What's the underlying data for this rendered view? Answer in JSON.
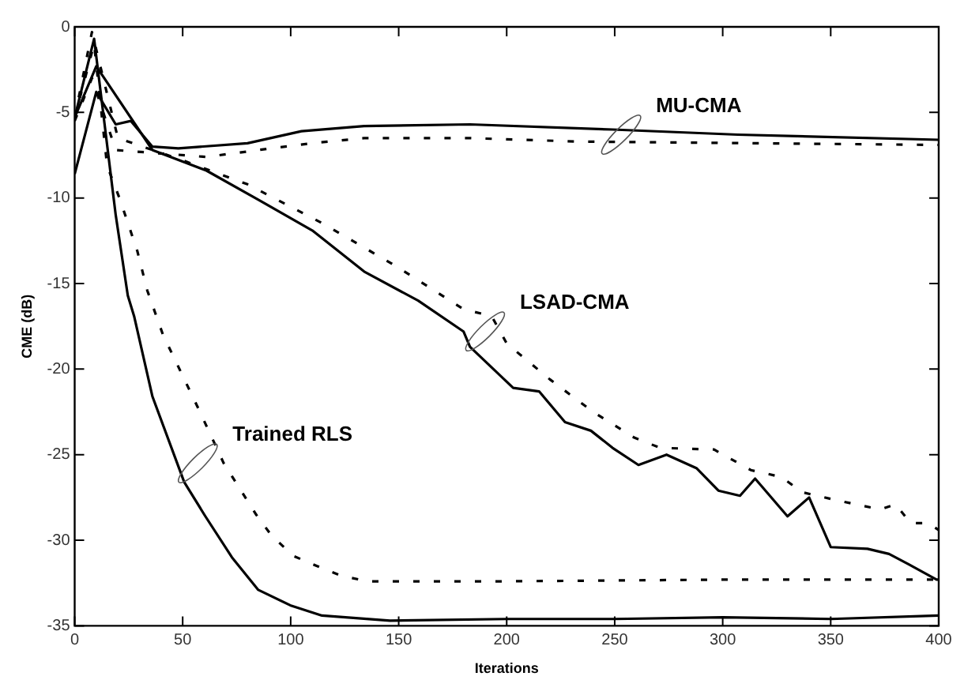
{
  "chart_data": {
    "type": "line",
    "xlabel": "Iterations",
    "ylabel": "CME (dB)",
    "xlim": [
      0,
      400
    ],
    "ylim": [
      -35,
      0
    ],
    "xticks": [
      0,
      50,
      100,
      150,
      200,
      250,
      300,
      350,
      400
    ],
    "yticks": [
      -35,
      -30,
      -25,
      -20,
      -15,
      -10,
      -5,
      0
    ],
    "grid": false,
    "legend": false,
    "marker": "none",
    "series": [
      {
        "color": "#000000",
        "line_style": "solid",
        "x": [
          0,
          10,
          19,
          26,
          36,
          48,
          80,
          105,
          134,
          183,
          249,
          307,
          400
        ],
        "values": [
          -8.6,
          -3.8,
          -5.7,
          -5.5,
          -7.0,
          -7.1,
          -6.8,
          -6.1,
          -5.8,
          -5.7,
          -6.0,
          -6.3,
          -6.6
        ]
      },
      {
        "color": "#000000",
        "line_style": "dashed",
        "x": [
          0,
          8,
          19,
          61,
          85,
          110,
          134,
          183,
          232,
          400
        ],
        "values": [
          -5.5,
          -3.0,
          -7.2,
          -7.6,
          -7.2,
          -6.8,
          -6.5,
          -6.5,
          -6.7,
          -6.9
        ]
      },
      {
        "color": "#000000",
        "line_style": "solid",
        "x": [
          0,
          10,
          36,
          61,
          85,
          110,
          134,
          159,
          180,
          183,
          203,
          215,
          227,
          239,
          249,
          261,
          274,
          288,
          298,
          308,
          315,
          330,
          340,
          350,
          367,
          377,
          386,
          399,
          400
        ],
        "values": [
          -5.3,
          -2.3,
          -7.2,
          -8.4,
          -10.1,
          -11.9,
          -14.3,
          -16.0,
          -17.8,
          -18.7,
          -21.1,
          -21.3,
          -23.1,
          -23.6,
          -24.6,
          -25.6,
          -25.0,
          -25.8,
          -27.1,
          -27.4,
          -26.4,
          -28.6,
          -27.5,
          -30.4,
          -30.5,
          -30.8,
          -31.4,
          -32.3,
          -32.3
        ]
      },
      {
        "color": "#000000",
        "line_style": "dashed",
        "x": [
          0,
          8,
          20,
          50,
          80,
          115,
          149,
          180,
          193,
          200,
          220,
          240,
          259,
          271,
          296,
          313,
          327,
          337,
          354,
          373,
          380,
          387,
          395,
          400
        ],
        "values": [
          -5.3,
          -0.3,
          -6.5,
          -7.8,
          -9.2,
          -11.5,
          -14.0,
          -16.5,
          -16.9,
          -18.5,
          -20.6,
          -22.5,
          -24.0,
          -24.6,
          -24.7,
          -25.9,
          -26.3,
          -27.2,
          -27.7,
          -28.2,
          -27.9,
          -29.0,
          -29.0,
          -29.4
        ]
      },
      {
        "color": "#000000",
        "line_style": "solid",
        "x": [
          0,
          9,
          19,
          24.6,
          27.5,
          36,
          50.7,
          60.5,
          72.8,
          85,
          99.8,
          114.5,
          146,
          200,
          250,
          300,
          350,
          400
        ],
        "values": [
          -5.3,
          -0.7,
          -11.0,
          -15.7,
          -16.9,
          -21.6,
          -26.6,
          -28.6,
          -31.0,
          -32.9,
          -33.8,
          -34.4,
          -34.7,
          -34.6,
          -34.6,
          -34.5,
          -34.6,
          -34.4
        ]
      },
      {
        "color": "#000000",
        "line_style": "dashed",
        "x": [
          0,
          9,
          15,
          21,
          29,
          33.6,
          40.9,
          47,
          58,
          69,
          76.5,
          84,
          91,
          101,
          112,
          124,
          136,
          200,
          300,
          400
        ],
        "values": [
          -5.3,
          -1.0,
          -8.1,
          -10.1,
          -13.1,
          -15.4,
          -18.0,
          -19.6,
          -22.5,
          -25.5,
          -27.0,
          -28.5,
          -29.7,
          -30.9,
          -31.5,
          -32.1,
          -32.4,
          -32.4,
          -32.3,
          -32.3
        ]
      }
    ],
    "annotations": [
      {
        "text": "MU-CMA",
        "x": 253,
        "y": -6.3
      },
      {
        "text": "LSAD-CMA",
        "x": 190,
        "y": -17.8
      },
      {
        "text": "Trained RLS",
        "x": 57,
        "y": -25.5
      }
    ]
  }
}
